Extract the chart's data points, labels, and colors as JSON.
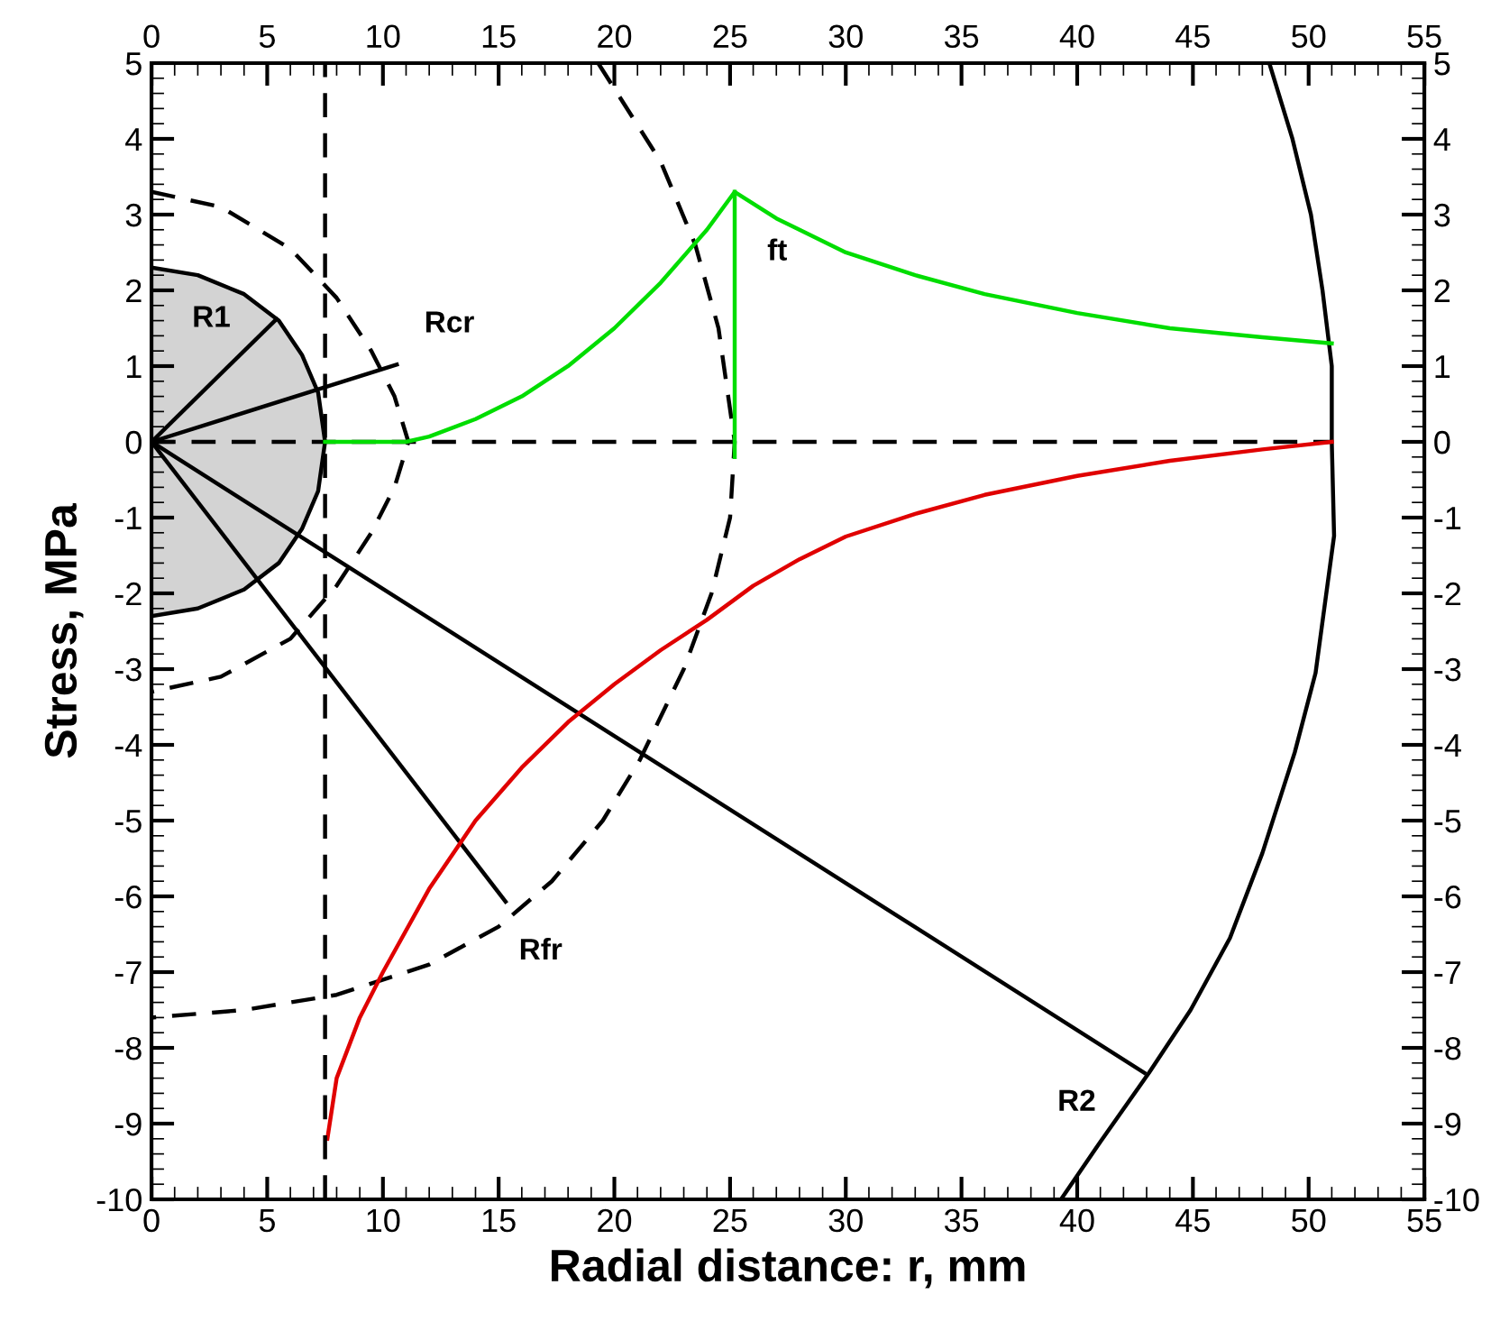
{
  "chart_data": {
    "type": "line",
    "xlabel": "Radial distance: r, mm",
    "ylabel": "Stress, MPa",
    "xlim": [
      0,
      55
    ],
    "xticks": [
      0,
      5,
      10,
      15,
      20,
      25,
      30,
      35,
      40,
      45,
      50,
      55
    ],
    "x2lim": [
      0,
      55
    ],
    "x2ticks": [
      0,
      5,
      10,
      15,
      20,
      25,
      30,
      35,
      40,
      45,
      50,
      55
    ],
    "ylim": [
      -10,
      5
    ],
    "yticks": [
      -10,
      -9,
      -8,
      -7,
      -6,
      -5,
      -4,
      -3,
      -2,
      -1,
      0,
      1,
      2,
      3,
      4,
      5
    ],
    "y2lim": [
      -10,
      5
    ],
    "y2ticks": [
      -10,
      -9,
      -8,
      -7,
      -6,
      -5,
      -4,
      -3,
      -2,
      -1,
      0,
      1,
      2,
      3,
      4,
      5
    ],
    "grid": false,
    "ref_lines": [
      {
        "axis": "x",
        "value": 7.5,
        "label": null,
        "color": "#000000",
        "line_style": "dashed"
      }
    ],
    "series": [
      {
        "color": "#000000",
        "line_style": "solid",
        "x": [
          0,
          2,
          4,
          5.5,
          6.5,
          7.2,
          7.5,
          7.2,
          6.5,
          5.5,
          4,
          2,
          0
        ],
        "values": [
          2.3,
          2.2,
          1.95,
          1.6,
          1.15,
          0.65,
          0,
          -0.65,
          -1.15,
          -1.6,
          -1.95,
          -2.2,
          -2.3
        ]
      },
      {
        "color": "#000000",
        "line_style": "dashed",
        "x": [
          0,
          3,
          6,
          8,
          9.5,
          10.5,
          11.1,
          10.5,
          9.5,
          8,
          6,
          3,
          0
        ],
        "values": [
          3.3,
          3.1,
          2.55,
          1.9,
          1.2,
          0.6,
          0,
          -0.6,
          -1.2,
          -1.9,
          -2.6,
          -3.1,
          -3.3
        ]
      },
      {
        "color": "#000000",
        "line_style": "dashed",
        "x": [
          19.3,
          22,
          23.5,
          24.5,
          25.2,
          25,
          24.2,
          23,
          21.1,
          19.5,
          17.3,
          15,
          12,
          8,
          4,
          0
        ],
        "values": [
          5,
          3.7,
          2.6,
          1.5,
          0,
          -1,
          -2,
          -3,
          -4.2,
          -5,
          -5.8,
          -6.4,
          -6.9,
          -7.3,
          -7.5,
          -7.6
        ]
      },
      {
        "color": "#000000",
        "line_style": "solid",
        "x": [
          48.3,
          49.3,
          50.1,
          50.6,
          51,
          51,
          51.1,
          50.3,
          49.4,
          48,
          46.6,
          44.9,
          43.1,
          41,
          39.3
        ],
        "values": [
          5,
          4,
          3,
          2,
          1,
          0,
          -1.24,
          -3.05,
          -4.1,
          -5.43,
          -6.55,
          -7.5,
          -8.33,
          -9.24,
          -10
        ]
      },
      {
        "color": "#000000",
        "line_style": "solid",
        "x": [
          0,
          5.4
        ],
        "values": [
          0,
          1.62
        ]
      },
      {
        "color": "#000000",
        "line_style": "solid",
        "x": [
          0,
          10.6
        ],
        "values": [
          0,
          1.02
        ]
      },
      {
        "color": "#000000",
        "line_style": "solid",
        "x": [
          0,
          15.3
        ],
        "values": [
          0,
          -6.07
        ]
      },
      {
        "color": "#000000",
        "line_style": "solid",
        "x": [
          0,
          42.9
        ],
        "values": [
          0,
          -8.33
        ]
      },
      {
        "color": "#000000",
        "line_style": "dashed",
        "x": [
          0,
          51
        ],
        "values": [
          0,
          0
        ]
      },
      {
        "color": "#00dd00",
        "line_style": "solid",
        "x": [
          7.5,
          11,
          12,
          14,
          16,
          18,
          20,
          22,
          24,
          25.2,
          27,
          30,
          33,
          36,
          40,
          44,
          48,
          51
        ],
        "values": [
          0,
          0,
          0.07,
          0.3,
          0.6,
          1.0,
          1.5,
          2.1,
          2.8,
          3.3,
          2.95,
          2.5,
          2.2,
          1.95,
          1.7,
          1.5,
          1.38,
          1.3
        ]
      },
      {
        "color": "#00dd00",
        "line_style": "solid",
        "x": [
          25.2,
          25.2
        ],
        "values": [
          3.3,
          -0.2
        ]
      },
      {
        "color": "#e00000",
        "line_style": "solid",
        "x": [
          7.6,
          8,
          9,
          10,
          12,
          14,
          16,
          18,
          20,
          22,
          24,
          26,
          28,
          30,
          33,
          36,
          40,
          44,
          48,
          51
        ],
        "values": [
          -9.2,
          -8.4,
          -7.6,
          -7.0,
          -5.9,
          -5.0,
          -4.3,
          -3.7,
          -3.2,
          -2.75,
          -2.35,
          -1.9,
          -1.55,
          -1.25,
          -0.95,
          -0.7,
          -0.45,
          -0.25,
          -0.1,
          0
        ]
      }
    ],
    "annotations": [
      {
        "text": "R1",
        "x": 5.4,
        "y": 1.62
      },
      {
        "text": "Rcr",
        "x": 10.6,
        "y": 1.02
      },
      {
        "text": "ft",
        "x": 25.2,
        "y": 2.5
      },
      {
        "text": "Rfr",
        "x": 15.3,
        "y": -6.07
      },
      {
        "text": "R2",
        "x": 42.9,
        "y": -8.33
      }
    ]
  }
}
